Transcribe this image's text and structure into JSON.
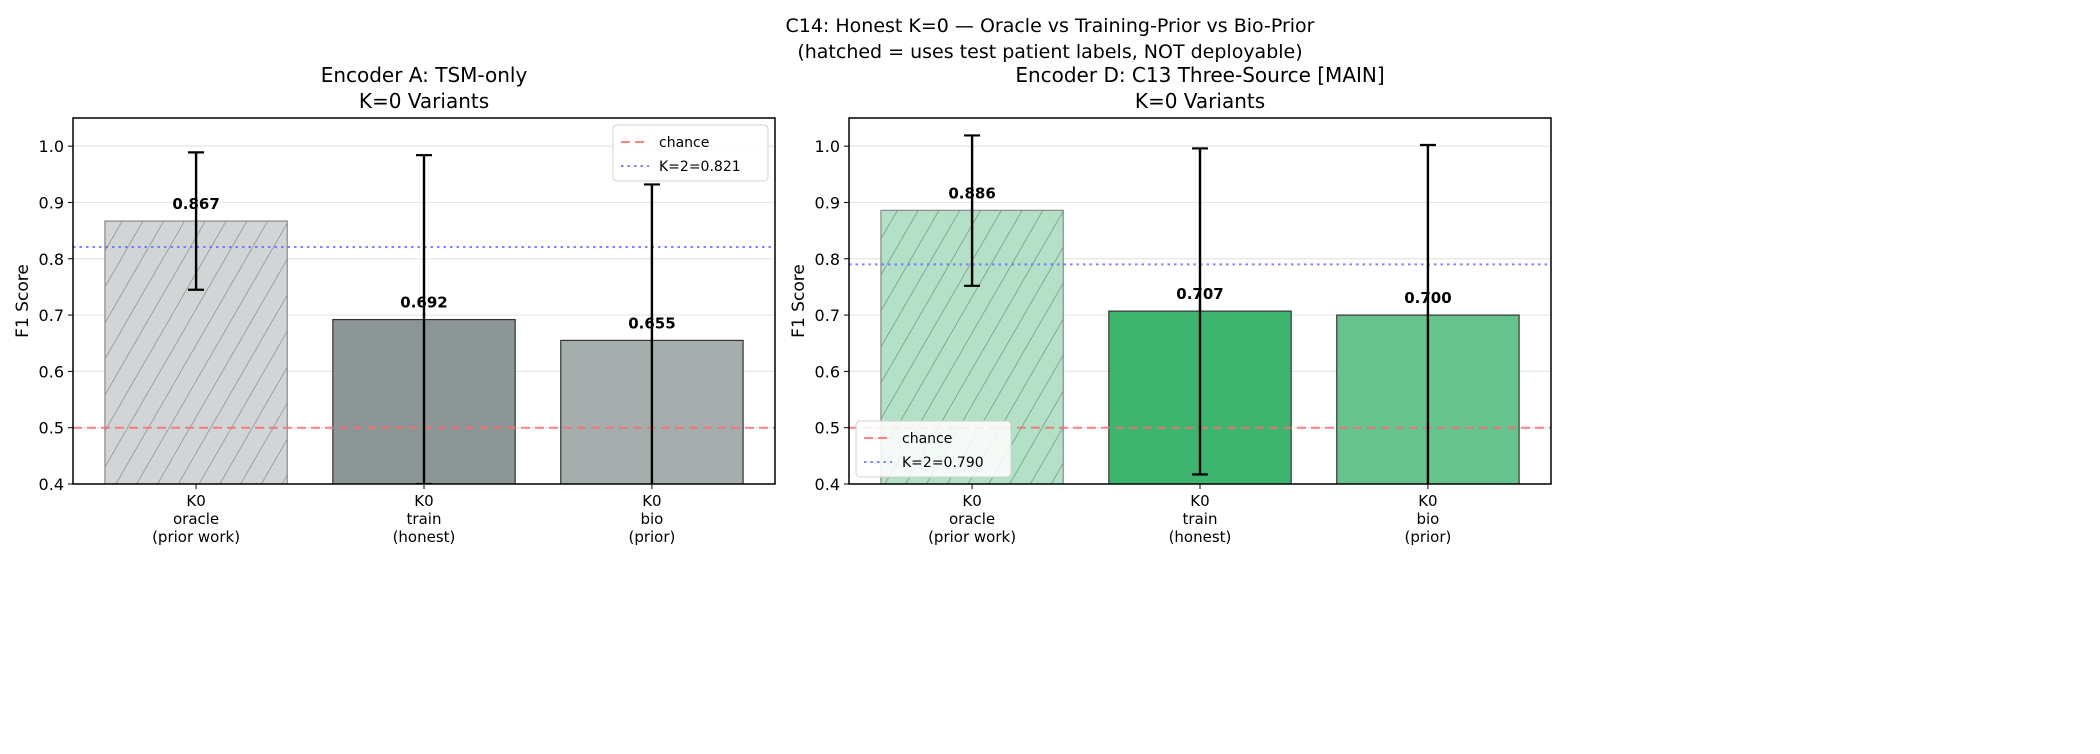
{
  "figure": {
    "suptitle_line1": "C14: Honest K=0 — Oracle vs Training-Prior vs Bio-Prior",
    "suptitle_line2": "(hatched = uses test patient labels, NOT deployable)"
  },
  "chart_data": [
    {
      "type": "bar",
      "title_line1": "Encoder A: TSM-only",
      "title_line2": "K=0 Variants",
      "ylabel": "F1 Score",
      "ylim": [
        0.4,
        1.05
      ],
      "yticks": [
        "0.4",
        "0.5",
        "0.6",
        "0.7",
        "0.8",
        "0.9",
        "1.0"
      ],
      "grid": "y",
      "categories": [
        [
          "K0",
          "oracle",
          "(prior work)"
        ],
        [
          "K0",
          "train",
          "(honest)"
        ],
        [
          "K0",
          "bio",
          "(prior)"
        ]
      ],
      "values": [
        0.867,
        0.692,
        0.655
      ],
      "value_labels": [
        "0.867",
        "0.692",
        "0.655"
      ],
      "error_low": [
        0.745,
        0.4,
        0.378
      ],
      "error_high": [
        0.989,
        0.984,
        0.932
      ],
      "colors": [
        "#d1d5d6",
        "#8c9696",
        "#a5adad"
      ],
      "hatched": [
        true,
        false,
        false
      ],
      "reference_lines": [
        {
          "name": "chance",
          "value": 0.5,
          "color": "#ff6b6b",
          "style": "dashed"
        },
        {
          "name": "K=2=0.821",
          "value": 0.821,
          "color": "#6b6bff",
          "style": "dotted"
        }
      ],
      "legend_placement": "upper right"
    },
    {
      "type": "bar",
      "title_line1": "Encoder D: C13 Three-Source [MAIN]",
      "title_line2": "K=0 Variants",
      "ylabel": "F1 Score",
      "ylim": [
        0.4,
        1.05
      ],
      "yticks": [
        "0.4",
        "0.5",
        "0.6",
        "0.7",
        "0.8",
        "0.9",
        "1.0"
      ],
      "grid": "y",
      "categories": [
        [
          "K0",
          "oracle",
          "(prior work)"
        ],
        [
          "K0",
          "train",
          "(honest)"
        ],
        [
          "K0",
          "bio",
          "(prior)"
        ]
      ],
      "values": [
        0.886,
        0.707,
        0.7
      ],
      "value_labels": [
        "0.886",
        "0.707",
        "0.700"
      ],
      "error_low": [
        0.752,
        0.417,
        0.398
      ],
      "error_high": [
        1.019,
        0.996,
        1.002
      ],
      "colors": [
        "#b3e0c6",
        "#3eb56f",
        "#66c38e"
      ],
      "hatched": [
        true,
        false,
        false
      ],
      "reference_lines": [
        {
          "name": "chance",
          "value": 0.5,
          "color": "#ff6b6b",
          "style": "dashed"
        },
        {
          "name": "K=2=0.790",
          "value": 0.79,
          "color": "#6b6bff",
          "style": "dotted"
        }
      ],
      "legend_placement": "lower left"
    }
  ]
}
